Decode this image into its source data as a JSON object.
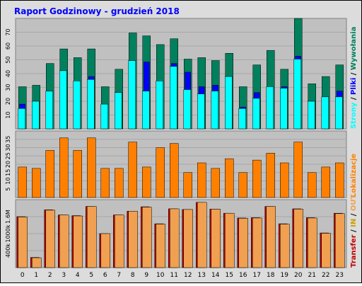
{
  "title": "Raport Godzinowy -  grudzień 2018",
  "colors": {
    "background": "#dcdcdc",
    "plot_background": "#c0c0c0",
    "title": "#0000ff",
    "hits": "#00805c",
    "files": "#0000ff",
    "pages": "#00ffff",
    "sites": "#ff8000",
    "kbytes": "#c00000",
    "kbytes_light": "#f0a050"
  },
  "hours": [
    "0",
    "1",
    "2",
    "3",
    "4",
    "5",
    "6",
    "7",
    "8",
    "9",
    "10",
    "11",
    "12",
    "13",
    "14",
    "15",
    "16",
    "17",
    "18",
    "19",
    "20",
    "21",
    "22",
    "23"
  ],
  "chart_data": [
    {
      "type": "bar",
      "panel": "requests",
      "ylim": [
        0,
        76
      ],
      "ytick_labels": [
        "10",
        "20",
        "30",
        "40",
        "50",
        "60",
        "70"
      ],
      "right_labels": {
        "a": "Strony",
        "sep1": " / ",
        "b": "Pliki",
        "sep2": " / ",
        "c": "Wywołania"
      },
      "categories": [
        "0",
        "1",
        "2",
        "3",
        "4",
        "5",
        "6",
        "7",
        "8",
        "9",
        "10",
        "11",
        "12",
        "13",
        "14",
        "15",
        "16",
        "17",
        "18",
        "19",
        "20",
        "21",
        "22",
        "23"
      ],
      "series": [
        {
          "name": "Wywołania",
          "values": [
            29,
            30,
            45,
            55,
            49,
            55,
            29,
            41,
            66,
            64,
            58,
            62,
            48,
            49,
            47,
            52,
            29,
            44,
            54,
            41,
            76,
            31,
            36,
            44
          ]
        },
        {
          "name": "Pliki",
          "values": [
            17,
            19,
            26,
            40,
            33,
            36,
            16,
            25,
            47,
            46,
            33,
            45,
            39,
            29,
            30,
            36,
            15,
            25,
            26,
            29,
            50,
            19,
            22,
            26
          ]
        },
        {
          "name": "Strony",
          "values": [
            14,
            19,
            26,
            40,
            33,
            34,
            17,
            25,
            47,
            26,
            33,
            43,
            27,
            24,
            26,
            36,
            14,
            21,
            29,
            28,
            48,
            19,
            22,
            22
          ]
        }
      ]
    },
    {
      "type": "bar",
      "panel": "sites",
      "ylim": [
        0,
        48
      ],
      "ytick_labels": [
        "5",
        "10",
        "15",
        "20",
        "25",
        "30",
        "35"
      ],
      "right_labels": {
        "a": "Lokalizacje"
      },
      "categories": [
        "0",
        "1",
        "2",
        "3",
        "4",
        "5",
        "6",
        "7",
        "8",
        "9",
        "10",
        "11",
        "12",
        "13",
        "14",
        "15",
        "16",
        "17",
        "18",
        "19",
        "20",
        "21",
        "22",
        "23"
      ],
      "series": [
        {
          "name": "Lokalizacje",
          "values": [
            22,
            21,
            34,
            43,
            34,
            43,
            21,
            21,
            40,
            22,
            36,
            39,
            18,
            25,
            21,
            28,
            18,
            27,
            32,
            25,
            40,
            18,
            22,
            25
          ]
        }
      ]
    },
    {
      "type": "bar",
      "panel": "transfer",
      "ylim": [
        0,
        2000
      ],
      "ytick_labels": [
        "400k",
        "1000k",
        "1.6M"
      ],
      "right_labels": {
        "a": "Transfer",
        "sep1": " / ",
        "b": "IN",
        "sep2": " / ",
        "c": "OUT"
      },
      "categories": [
        "0",
        "1",
        "2",
        "3",
        "4",
        "5",
        "6",
        "7",
        "8",
        "9",
        "10",
        "11",
        "12",
        "13",
        "14",
        "15",
        "16",
        "17",
        "18",
        "19",
        "20",
        "21",
        "22",
        "23"
      ],
      "series": [
        {
          "name": "Transfer",
          "values": [
            1500,
            300,
            1700,
            1550,
            1530,
            1800,
            1000,
            1550,
            1660,
            1790,
            1290,
            1730,
            1710,
            1920,
            1720,
            1600,
            1460,
            1470,
            1800,
            1290,
            1730,
            1470,
            1020,
            1600
          ]
        },
        {
          "name": "Transfer (light)",
          "values": [
            1490,
            290,
            1690,
            1550,
            1520,
            1800,
            1000,
            1550,
            1660,
            1780,
            1280,
            1730,
            1710,
            1920,
            1720,
            1600,
            1450,
            1460,
            1800,
            1280,
            1720,
            1460,
            1010,
            1590
          ]
        }
      ]
    }
  ]
}
